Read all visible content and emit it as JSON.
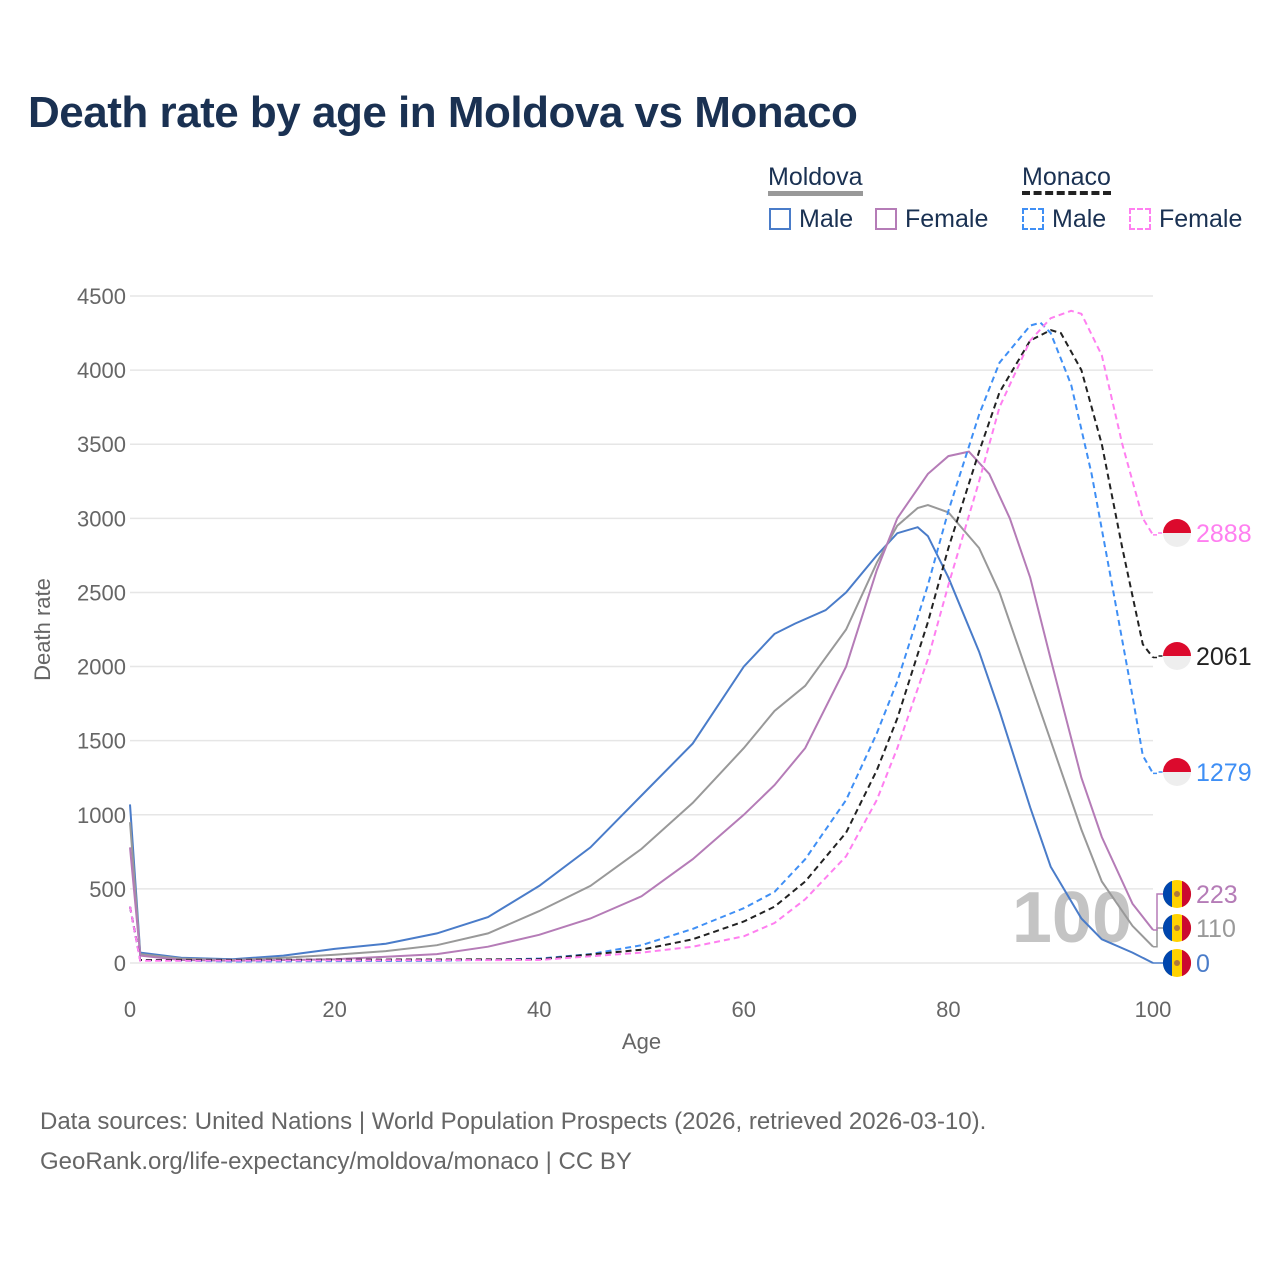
{
  "title": "Death rate by age in Moldova vs Monaco",
  "legend": {
    "group1": "Moldova",
    "group2": "Monaco",
    "male": "Male",
    "female": "Female"
  },
  "source": {
    "line1": "Data sources: United Nations | World Population Prospects (2026, retrieved 2026-03-10).",
    "line2": "GeoRank.org/life-expectancy/moldova/monaco | CC BY"
  },
  "watermark": "100",
  "chart_data": {
    "type": "line",
    "xlabel": "Age",
    "ylabel": "Death rate",
    "xlim": [
      0,
      100
    ],
    "ylim": [
      0,
      4500
    ],
    "xticks": [
      0,
      20,
      40,
      60,
      80,
      100
    ],
    "yticks": [
      0,
      500,
      1000,
      1500,
      2000,
      2500,
      3000,
      3500,
      4000,
      4500
    ],
    "series": [
      {
        "name": "Moldova Male",
        "color": "#4a7cc9",
        "dash": false,
        "end_label": "0",
        "flag": "moldova",
        "points": [
          [
            0,
            1070
          ],
          [
            1,
            70
          ],
          [
            5,
            35
          ],
          [
            10,
            25
          ],
          [
            15,
            50
          ],
          [
            20,
            95
          ],
          [
            25,
            130
          ],
          [
            30,
            200
          ],
          [
            35,
            310
          ],
          [
            40,
            520
          ],
          [
            45,
            780
          ],
          [
            50,
            1130
          ],
          [
            55,
            1480
          ],
          [
            60,
            2000
          ],
          [
            63,
            2220
          ],
          [
            65,
            2290
          ],
          [
            68,
            2380
          ],
          [
            70,
            2500
          ],
          [
            73,
            2750
          ],
          [
            75,
            2900
          ],
          [
            77,
            2940
          ],
          [
            78,
            2880
          ],
          [
            80,
            2600
          ],
          [
            83,
            2100
          ],
          [
            85,
            1700
          ],
          [
            88,
            1050
          ],
          [
            90,
            650
          ],
          [
            93,
            300
          ],
          [
            95,
            160
          ],
          [
            98,
            70
          ],
          [
            100,
            0
          ]
        ]
      },
      {
        "name": "Moldova",
        "color": "#999999",
        "dash": false,
        "end_label": "110",
        "flag": "moldova",
        "points": [
          [
            0,
            950
          ],
          [
            1,
            60
          ],
          [
            5,
            30
          ],
          [
            10,
            20
          ],
          [
            15,
            35
          ],
          [
            20,
            55
          ],
          [
            25,
            80
          ],
          [
            30,
            120
          ],
          [
            35,
            200
          ],
          [
            40,
            350
          ],
          [
            45,
            520
          ],
          [
            50,
            770
          ],
          [
            55,
            1080
          ],
          [
            60,
            1450
          ],
          [
            63,
            1700
          ],
          [
            66,
            1870
          ],
          [
            70,
            2250
          ],
          [
            73,
            2700
          ],
          [
            75,
            2950
          ],
          [
            77,
            3070
          ],
          [
            78,
            3090
          ],
          [
            80,
            3040
          ],
          [
            83,
            2800
          ],
          [
            85,
            2500
          ],
          [
            88,
            1900
          ],
          [
            90,
            1500
          ],
          [
            93,
            900
          ],
          [
            95,
            550
          ],
          [
            98,
            250
          ],
          [
            100,
            110
          ]
        ]
      },
      {
        "name": "Moldova Female",
        "color": "#b57cb7",
        "dash": false,
        "end_label": "223",
        "flag": "moldova",
        "points": [
          [
            0,
            780
          ],
          [
            1,
            50
          ],
          [
            5,
            20
          ],
          [
            10,
            15
          ],
          [
            20,
            25
          ],
          [
            30,
            60
          ],
          [
            35,
            110
          ],
          [
            40,
            190
          ],
          [
            45,
            300
          ],
          [
            50,
            450
          ],
          [
            55,
            700
          ],
          [
            60,
            1000
          ],
          [
            63,
            1200
          ],
          [
            66,
            1450
          ],
          [
            70,
            2000
          ],
          [
            73,
            2650
          ],
          [
            75,
            3000
          ],
          [
            78,
            3300
          ],
          [
            80,
            3420
          ],
          [
            82,
            3450
          ],
          [
            84,
            3300
          ],
          [
            86,
            3000
          ],
          [
            88,
            2600
          ],
          [
            90,
            2050
          ],
          [
            93,
            1250
          ],
          [
            95,
            850
          ],
          [
            98,
            400
          ],
          [
            100,
            223
          ]
        ]
      },
      {
        "name": "Monaco Male",
        "color": "#3f8ff5",
        "dash": true,
        "end_label": "1279",
        "flag": "monaco",
        "points": [
          [
            0,
            380
          ],
          [
            1,
            20
          ],
          [
            10,
            10
          ],
          [
            30,
            15
          ],
          [
            40,
            30
          ],
          [
            45,
            60
          ],
          [
            50,
            120
          ],
          [
            55,
            230
          ],
          [
            60,
            370
          ],
          [
            63,
            480
          ],
          [
            66,
            700
          ],
          [
            70,
            1100
          ],
          [
            73,
            1550
          ],
          [
            75,
            1900
          ],
          [
            78,
            2550
          ],
          [
            80,
            3050
          ],
          [
            83,
            3700
          ],
          [
            85,
            4050
          ],
          [
            88,
            4300
          ],
          [
            89,
            4320
          ],
          [
            90,
            4250
          ],
          [
            92,
            3900
          ],
          [
            94,
            3300
          ],
          [
            96,
            2550
          ],
          [
            98,
            1800
          ],
          [
            99,
            1400
          ],
          [
            100,
            1279
          ]
        ]
      },
      {
        "name": "Monaco",
        "color": "#222222",
        "dash": true,
        "end_label": "2061",
        "flag": "monaco",
        "points": [
          [
            0,
            380
          ],
          [
            1,
            20
          ],
          [
            40,
            25
          ],
          [
            50,
            90
          ],
          [
            55,
            160
          ],
          [
            60,
            280
          ],
          [
            63,
            380
          ],
          [
            66,
            550
          ],
          [
            70,
            880
          ],
          [
            73,
            1300
          ],
          [
            75,
            1650
          ],
          [
            78,
            2300
          ],
          [
            80,
            2800
          ],
          [
            83,
            3450
          ],
          [
            85,
            3850
          ],
          [
            88,
            4200
          ],
          [
            90,
            4270
          ],
          [
            91,
            4250
          ],
          [
            93,
            4000
          ],
          [
            95,
            3500
          ],
          [
            97,
            2800
          ],
          [
            99,
            2150
          ],
          [
            100,
            2061
          ]
        ]
      },
      {
        "name": "Monaco Female",
        "color": "#ff7ff0",
        "dash": true,
        "end_label": "2888",
        "flag": "monaco",
        "points": [
          [
            0,
            380
          ],
          [
            1,
            15
          ],
          [
            40,
            20
          ],
          [
            50,
            70
          ],
          [
            55,
            110
          ],
          [
            60,
            180
          ],
          [
            63,
            270
          ],
          [
            66,
            430
          ],
          [
            70,
            720
          ],
          [
            73,
            1100
          ],
          [
            75,
            1450
          ],
          [
            78,
            2050
          ],
          [
            80,
            2550
          ],
          [
            83,
            3250
          ],
          [
            85,
            3750
          ],
          [
            88,
            4200
          ],
          [
            90,
            4350
          ],
          [
            92,
            4400
          ],
          [
            93,
            4380
          ],
          [
            95,
            4100
          ],
          [
            97,
            3500
          ],
          [
            99,
            3000
          ],
          [
            100,
            2888
          ]
        ]
      }
    ]
  }
}
